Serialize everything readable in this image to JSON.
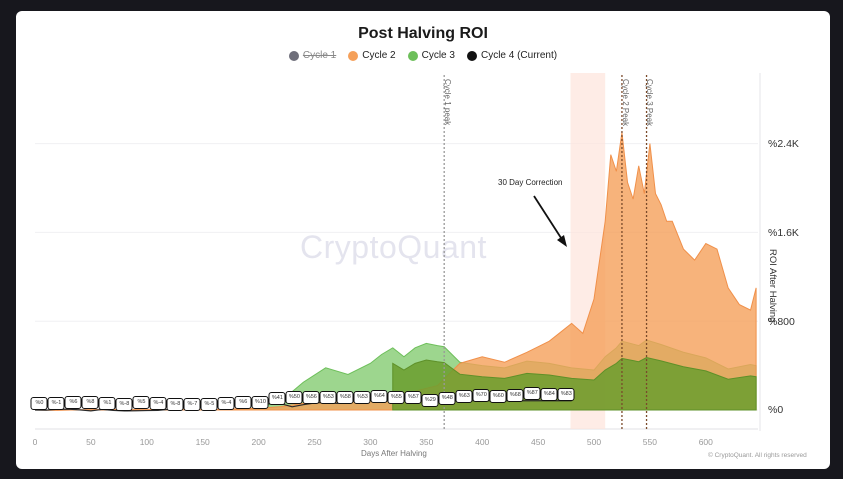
{
  "chart_data": {
    "type": "area",
    "title": "Post Halving ROI",
    "xlabel": "Days After Halving",
    "ylabel": "ROI After Halving",
    "xlim": [
      0,
      645
    ],
    "ylim": [
      0,
      2700
    ],
    "x_ticks": [
      0,
      50,
      100,
      150,
      200,
      250,
      300,
      350,
      400,
      450,
      500,
      550,
      600
    ],
    "y_ticks": [
      {
        "value": 0,
        "label": "%0"
      },
      {
        "value": 800,
        "label": "%800"
      },
      {
        "value": 1600,
        "label": "%1.6K"
      },
      {
        "value": 2400,
        "label": "%2.4K"
      }
    ],
    "grid": true,
    "legend_position": "top-center",
    "legend": [
      {
        "name": "Cycle 1",
        "color": "#6e6e7a",
        "hidden": true
      },
      {
        "name": "Cycle 2",
        "color": "#f5a05a",
        "hidden": false
      },
      {
        "name": "Cycle 3",
        "color": "#6dbf5a",
        "hidden": false
      },
      {
        "name": "Cycle 4 (Current)",
        "color": "#111111",
        "hidden": false
      }
    ],
    "series": [
      {
        "name": "Cycle 2",
        "color": "#f5a05a",
        "x": [
          0,
          20,
          40,
          60,
          80,
          100,
          120,
          140,
          160,
          180,
          200,
          220,
          240,
          260,
          280,
          300,
          320,
          340,
          360,
          380,
          400,
          420,
          440,
          460,
          470,
          480,
          490,
          500,
          505,
          510,
          515,
          520,
          525,
          530,
          535,
          540,
          545,
          550,
          555,
          560,
          565,
          570,
          580,
          590,
          600,
          610,
          620,
          630,
          640,
          645
        ],
        "y": [
          0,
          -3,
          2,
          5,
          4,
          3,
          6,
          2,
          5,
          10,
          15,
          30,
          60,
          90,
          110,
          130,
          150,
          170,
          220,
          420,
          480,
          430,
          520,
          620,
          700,
          780,
          690,
          1000,
          1350,
          1700,
          2300,
          2150,
          2500,
          2050,
          1900,
          2200,
          1950,
          2400,
          1950,
          1850,
          1700,
          1700,
          1450,
          1350,
          1500,
          1450,
          1100,
          950,
          900,
          1100
        ]
      },
      {
        "name": "Cycle 3",
        "color": "#6dbf5a",
        "x": [
          0,
          100,
          180,
          200,
          220,
          240,
          260,
          280,
          300,
          310,
          320,
          330,
          340,
          350,
          360,
          366,
          380,
          400,
          420,
          440,
          460,
          480,
          500,
          510,
          520,
          525,
          540,
          547,
          560,
          580,
          600,
          620,
          640,
          645
        ],
        "y": [
          0,
          0,
          5,
          20,
          80,
          250,
          380,
          320,
          420,
          500,
          560,
          480,
          560,
          600,
          580,
          570,
          430,
          400,
          380,
          440,
          420,
          380,
          360,
          480,
          560,
          620,
          580,
          630,
          590,
          520,
          470,
          370,
          410,
          400
        ]
      },
      {
        "name": "Cycle 4 (Current)",
        "color": "#111111",
        "x": [
          0,
          10,
          20,
          30,
          40,
          50,
          60,
          70,
          80,
          90,
          100,
          110,
          120,
          130,
          140,
          150,
          160,
          170,
          180,
          190,
          200,
          210,
          220,
          230,
          240,
          250,
          260,
          270,
          280,
          290,
          300,
          310,
          320,
          330,
          340,
          350,
          360,
          370,
          380,
          390,
          400,
          410,
          420,
          430,
          440,
          450,
          460,
          470,
          480
        ],
        "y": [
          0,
          -1,
          6,
          8,
          1,
          -8,
          5,
          -4,
          -8,
          -7,
          -5,
          -4,
          6,
          10,
          41,
          50,
          56,
          53,
          58,
          53,
          64,
          55,
          57,
          29,
          48,
          63,
          70,
          60,
          68,
          87,
          84,
          83,
          83,
          83,
          83,
          83,
          83,
          83,
          83,
          83,
          83,
          83,
          83,
          83,
          83,
          83,
          83,
          83,
          83
        ],
        "note": "ROI label pills shown along Cycle 4 path"
      }
    ],
    "cycle4_labels": [
      "%0",
      "%-1",
      "%6",
      "%8",
      "%1",
      "%-8",
      "%5",
      "%-4",
      "%-8",
      "%-7",
      "%-5",
      "%-4",
      "%6",
      "%10",
      "%41",
      "%50",
      "%56",
      "%53",
      "%58",
      "%53",
      "%64",
      "%55",
      "%57",
      "%29",
      "%48",
      "%63",
      "%70",
      "%60",
      "%68",
      "%87",
      "%84",
      "%83"
    ],
    "annotations": [
      {
        "type": "vline",
        "x": 366,
        "label": "Cycle 1 peak"
      },
      {
        "type": "vline",
        "x": 525,
        "label": "Cycle 2 Peak"
      },
      {
        "type": "vline",
        "x": 547,
        "label": "Cycle 3 Peak"
      },
      {
        "type": "band",
        "x0": 479,
        "x1": 510,
        "color": "#fde4dc"
      },
      {
        "type": "arrow",
        "text": "30 Day Correction",
        "points_to_day": 475
      }
    ]
  },
  "header": {
    "title": "Post Halving ROI"
  },
  "legend": {
    "items": [
      {
        "label": "Cycle 1",
        "color": "#6e6e7a"
      },
      {
        "label": "Cycle 2",
        "color": "#f5a05a"
      },
      {
        "label": "Cycle 3",
        "color": "#6dbf5a"
      },
      {
        "label": "Cycle 4 (Current)",
        "color": "#111111"
      }
    ]
  },
  "axes": {
    "y_ticks": [
      "%2.4K",
      "%1.6K",
      "%800",
      "%0"
    ],
    "y_label": "ROI After Halving",
    "x_ticks": [
      "0",
      "50",
      "100",
      "150",
      "200",
      "250",
      "300",
      "350",
      "400",
      "450",
      "500",
      "550",
      "600"
    ],
    "x_label": "Days After Halving"
  },
  "annotations": {
    "correction": "30 Day Correction",
    "cycle1_peak": "Cycle 1 peak",
    "cycle2_peak": "Cycle 2 Peak",
    "cycle3_peak": "Cycle 3 Peak"
  },
  "watermark": "CryptoQuant",
  "copyright": "© CryptoQuant. All rights reserved"
}
